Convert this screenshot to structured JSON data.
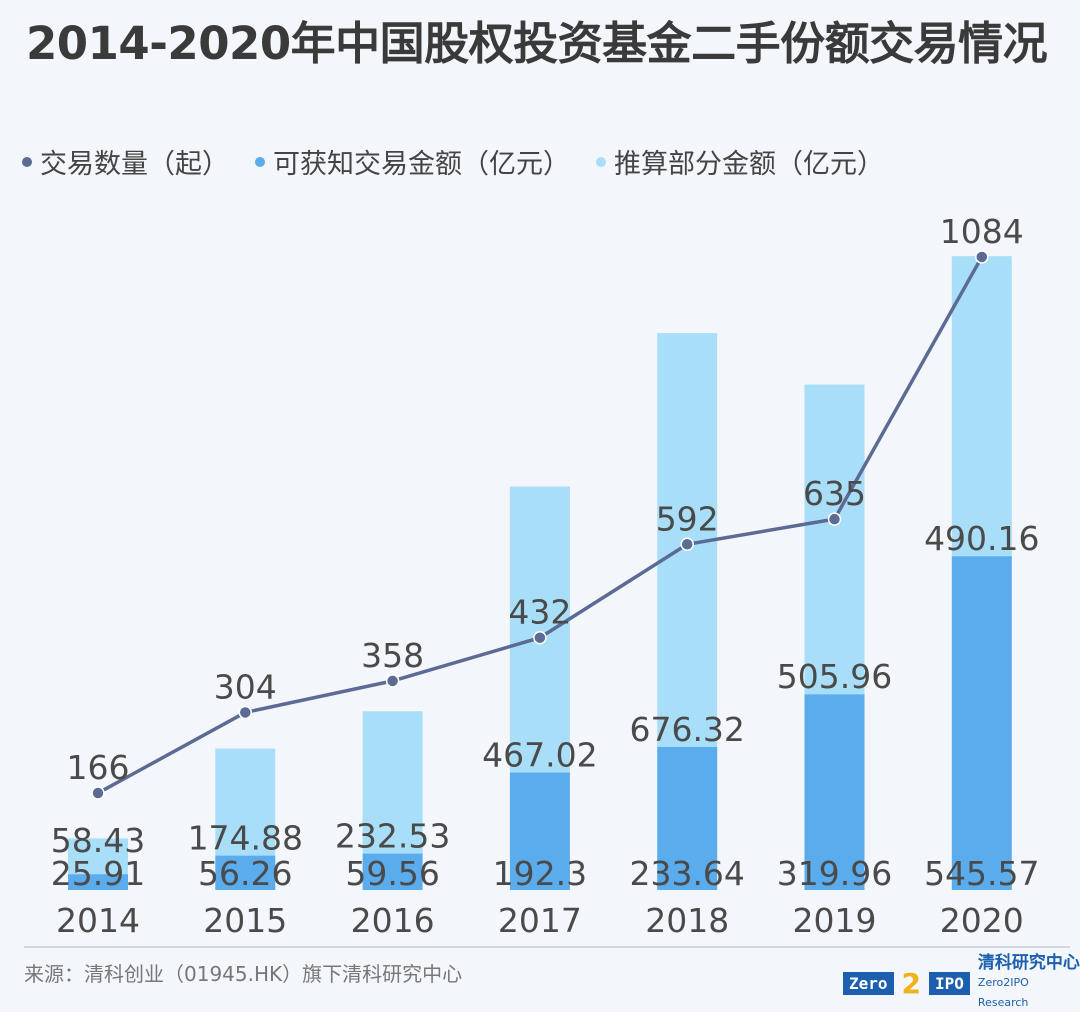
{
  "title": "2014-2020年中国股权投资基金二手份额交易情况",
  "legend": {
    "count": "交易数量（起）",
    "known": "可获知交易金额（亿元）",
    "estimated": "推算部分金额（亿元）"
  },
  "colors": {
    "count": "#5b6b93",
    "known": "#5aaced",
    "estimated": "#a9def8"
  },
  "chart_data": {
    "type": "bar",
    "title": "2014-2020年中国股权投资基金二手份额交易情况",
    "categories": [
      "2014",
      "2015",
      "2016",
      "2017",
      "2018",
      "2019",
      "2020"
    ],
    "series": [
      {
        "name": "可获知交易金额（亿元）",
        "type": "stacked-bar",
        "values": [
          25.91,
          56.26,
          59.56,
          192.3,
          233.64,
          319.96,
          545.57
        ]
      },
      {
        "name": "推算部分金额（亿元）",
        "type": "stacked-bar",
        "values": [
          58.43,
          174.88,
          232.53,
          467.02,
          676.32,
          505.96,
          490.16
        ]
      },
      {
        "name": "交易数量（起）",
        "type": "line",
        "values": [
          166,
          304,
          358,
          432,
          592,
          635,
          1084
        ]
      }
    ],
    "legend_position": "top-left",
    "grid": false
  },
  "footer": {
    "source": "来源：清科创业（01945.HK）旗下清科研究中心",
    "logo_left": "Zero",
    "logo_num": "2",
    "logo_right": "IPO",
    "logo_cn": "清科研究中心",
    "logo_en": "Zero2IPO Research"
  }
}
